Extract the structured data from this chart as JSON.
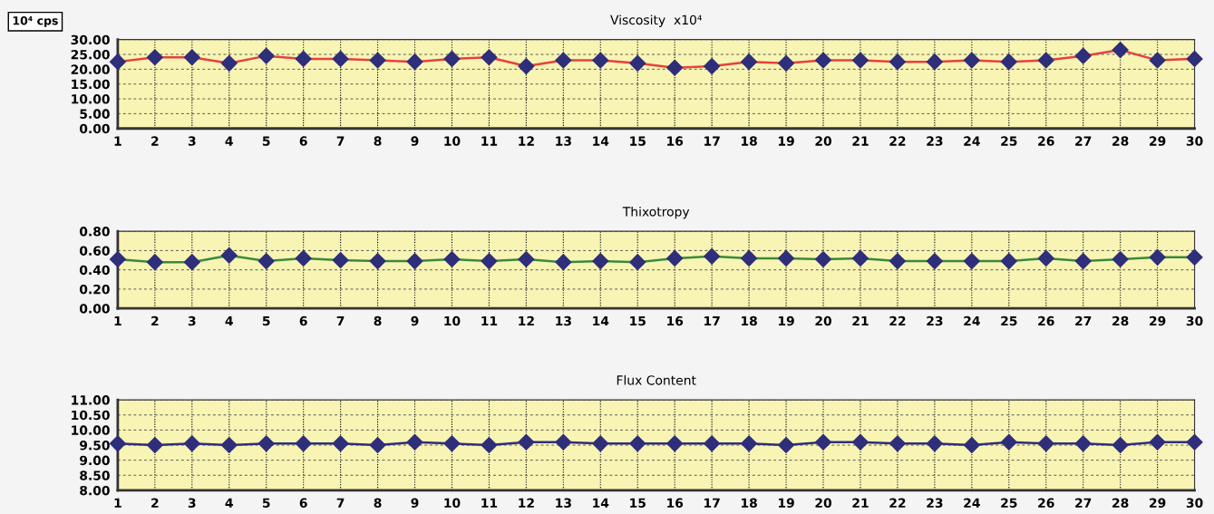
{
  "chart_data": [
    {
      "type": "line",
      "title": "Viscosity  x10⁴",
      "ylabel": "10⁴ cps",
      "categories": [
        "1",
        "2",
        "3",
        "4",
        "5",
        "6",
        "7",
        "8",
        "9",
        "10",
        "11",
        "12",
        "13",
        "14",
        "15",
        "16",
        "17",
        "18",
        "19",
        "20",
        "21",
        "22",
        "23",
        "24",
        "25",
        "26",
        "27",
        "28",
        "29",
        "30"
      ],
      "series": [
        {
          "color": "#e8413c",
          "colors": [
            "#2e2e7a",
            "#2e2e7a",
            "#2e2e7a",
            "#2e2e7a",
            "#2e2e7a",
            "#2e2e7a",
            "#2e2e7a",
            "#2e2e7a",
            "#2e2e7a",
            "#2e2e7a",
            "#2e2e7a",
            "#2e2e7a",
            "#2e2e7a",
            "#2e2e7a",
            "#2e2e7a",
            "#2e2e7a",
            "#2e2e7a",
            "#2e2e7a",
            "#2e2e7a",
            "#2e2e7a",
            "#2e2e7a",
            "#2e2e7a",
            "#2e2e7a",
            "#2e2e7a",
            "#2e2e7a",
            "#2e2e7a",
            "#2e2e7a",
            "#2e2e7a",
            "#2e2e7a",
            "#2e2e7a"
          ],
          "values": [
            22.5,
            24,
            24,
            22,
            24.5,
            23.5,
            23.5,
            23,
            22.5,
            23.5,
            24,
            21,
            23,
            23,
            22,
            20.5,
            21,
            22.5,
            22,
            23,
            23,
            22.5,
            22.5,
            23,
            22.5,
            23,
            24.5,
            26.5,
            23,
            23.5
          ]
        }
      ],
      "ylim": [
        0,
        30
      ],
      "yticks": [
        {
          "value": 0,
          "label": "0.00"
        },
        {
          "value": 5,
          "label": "5.00"
        },
        {
          "value": 10,
          "label": "10.00"
        },
        {
          "value": 15,
          "label": "15.00"
        },
        {
          "value": 20,
          "label": "20.00"
        },
        {
          "value": 25,
          "label": "25.00"
        },
        {
          "value": 30,
          "label": "30.00"
        }
      ],
      "grid": true,
      "legend": false,
      "marker": "diamond",
      "line_style": "solid"
    },
    {
      "type": "line",
      "title": "Thixotropy",
      "categories": [
        "1",
        "2",
        "3",
        "4",
        "5",
        "6",
        "7",
        "8",
        "9",
        "10",
        "11",
        "12",
        "13",
        "14",
        "15",
        "16",
        "17",
        "18",
        "19",
        "20",
        "21",
        "22",
        "23",
        "24",
        "25",
        "26",
        "27",
        "28",
        "29",
        "30"
      ],
      "series": [
        {
          "color": "#3a8a3a",
          "colors": [
            "#2e2e7a",
            "#2e2e7a",
            "#2e2e7a",
            "#2e2e7a",
            "#2e2e7a",
            "#2e2e7a",
            "#2e2e7a",
            "#2e2e7a",
            "#2e2e7a",
            "#2e2e7a",
            "#2e2e7a",
            "#2e2e7a",
            "#2e2e7a",
            "#2e2e7a",
            "#2e2e7a",
            "#2e2e7a",
            "#2e2e7a",
            "#2e2e7a",
            "#2e2e7a",
            "#2e2e7a",
            "#2e2e7a",
            "#2e2e7a",
            "#2e2e7a",
            "#2e2e7a",
            "#2e2e7a",
            "#2e2e7a",
            "#2e2e7a",
            "#2e2e7a",
            "#2e2e7a",
            "#2e2e7a"
          ],
          "values": [
            0.51,
            0.48,
            0.48,
            0.55,
            0.49,
            0.52,
            0.5,
            0.49,
            0.49,
            0.51,
            0.49,
            0.51,
            0.48,
            0.49,
            0.48,
            0.52,
            0.54,
            0.52,
            0.52,
            0.51,
            0.52,
            0.49,
            0.49,
            0.49,
            0.49,
            0.52,
            0.49,
            0.51,
            0.53,
            0.53
          ]
        }
      ],
      "ylim": [
        0,
        0.8
      ],
      "yticks": [
        {
          "value": 0,
          "label": "0.00"
        },
        {
          "value": 0.2,
          "label": "0.20"
        },
        {
          "value": 0.4,
          "label": "0.40"
        },
        {
          "value": 0.6,
          "label": "0.60"
        },
        {
          "value": 0.8,
          "label": "0.80"
        }
      ],
      "grid": true,
      "legend": false,
      "marker": "diamond",
      "line_style": "solid"
    },
    {
      "type": "line",
      "title": "Flux Content",
      "categories": [
        "1",
        "2",
        "3",
        "4",
        "5",
        "6",
        "7",
        "8",
        "9",
        "10",
        "11",
        "12",
        "13",
        "14",
        "15",
        "16",
        "17",
        "18",
        "19",
        "20",
        "21",
        "22",
        "23",
        "24",
        "25",
        "26",
        "27",
        "28",
        "29",
        "30"
      ],
      "series": [
        {
          "color": "#2e2e7a",
          "colors": [
            "#2e2e7a",
            "#2e2e7a",
            "#2e2e7a",
            "#2e2e7a",
            "#2e2e7a",
            "#2e2e7a",
            "#2e2e7a",
            "#2e2e7a",
            "#2e2e7a",
            "#2e2e7a",
            "#2e2e7a",
            "#2e2e7a",
            "#2e2e7a",
            "#2e2e7a",
            "#2e2e7a",
            "#2e2e7a",
            "#2e2e7a",
            "#2e2e7a",
            "#2e2e7a",
            "#2e2e7a",
            "#2e2e7a",
            "#2e2e7a",
            "#2e2e7a",
            "#2e2e7a",
            "#2e2e7a",
            "#2e2e7a",
            "#2e2e7a",
            "#2e2e7a",
            "#2e2e7a",
            "#2e2e7a"
          ],
          "values": [
            9.55,
            9.5,
            9.55,
            9.5,
            9.55,
            9.55,
            9.55,
            9.5,
            9.6,
            9.55,
            9.5,
            9.6,
            9.6,
            9.55,
            9.55,
            9.55,
            9.55,
            9.55,
            9.5,
            9.6,
            9.6,
            9.55,
            9.55,
            9.5,
            9.6,
            9.55,
            9.55,
            9.5,
            9.6,
            9.6
          ]
        }
      ],
      "ylim": [
        8,
        11
      ],
      "yticks": [
        {
          "value": 8,
          "label": "8.00"
        },
        {
          "value": 8.5,
          "label": "8.50"
        },
        {
          "value": 9,
          "label": "9.00"
        },
        {
          "value": 9.5,
          "label": "9.50"
        },
        {
          "value": 10,
          "label": "10.00"
        },
        {
          "value": 10.5,
          "label": "10.50"
        },
        {
          "value": 11,
          "label": "11.00"
        }
      ],
      "grid": true,
      "legend": false,
      "marker": "diamond",
      "line_style": "solid"
    }
  ]
}
